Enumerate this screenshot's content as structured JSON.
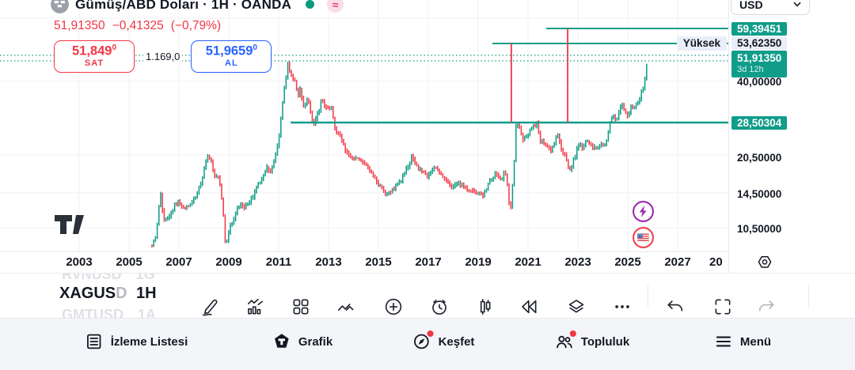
{
  "colors": {
    "accent_teal": "#0F9D8A",
    "candle_up": "#089981",
    "candle_down": "#F23645",
    "sell_red": "#F23645",
    "buy_blue": "#2962FF",
    "high_badge_bg": "#E9EEF9",
    "event_purple": "#9C27B0",
    "event_red": "#F0414D",
    "text_dark": "#131722"
  },
  "header": {
    "symbol_title": "Gümüş/ABD Doları · 1H · OANDA",
    "price": "51,91350",
    "change": "−0,41325",
    "change_pct": "(−0,79%)",
    "approx_badge": "≈",
    "sell": {
      "price_main": "51,849",
      "price_sup": "0",
      "label": "SAT"
    },
    "spread": "1.169,0",
    "buy": {
      "price_main": "51,9659",
      "price_sup": "0",
      "label": "AL"
    }
  },
  "price_scale": {
    "currency": "USD",
    "high_label": "Yüksek",
    "labels": [
      {
        "text": "59,39451",
        "type": "teal"
      },
      {
        "text": "53,62350",
        "type": "lavender"
      },
      {
        "text": "51,91350",
        "sub": "3d 12h",
        "type": "current"
      },
      {
        "text": "40,00000",
        "type": "plain"
      },
      {
        "text": "28,50304",
        "type": "teal"
      },
      {
        "text": "20,50000",
        "type": "plain"
      },
      {
        "text": "14,50000",
        "type": "plain"
      },
      {
        "text": "10,50000",
        "type": "plain"
      }
    ]
  },
  "time_axis": {
    "ticks": [
      "2003",
      "2005",
      "2007",
      "2009",
      "2011",
      "2013",
      "2015",
      "2017",
      "2019",
      "2021",
      "2023",
      "2025",
      "2027",
      "20"
    ]
  },
  "toolbar": {
    "symbol": "XAGUSD",
    "interval": "1H",
    "ghost_above": {
      "symbol": "RVNUSD",
      "interval": "1G"
    },
    "ghost_below": {
      "symbol": "GMTUSD",
      "interval": "1A"
    },
    "icons": [
      {
        "name": "draw-icon"
      },
      {
        "name": "indicators-icon"
      },
      {
        "name": "templates-icon"
      },
      {
        "name": "patterns-icon"
      },
      {
        "name": "add-icon"
      },
      {
        "name": "alert-icon"
      },
      {
        "name": "bars-icon"
      },
      {
        "name": "replay-icon"
      },
      {
        "name": "layers-icon"
      },
      {
        "name": "more-icon"
      },
      {
        "name": "undo-icon"
      },
      {
        "name": "fullscreen-icon"
      },
      {
        "name": "redo-icon"
      }
    ]
  },
  "bottom_nav": {
    "items": [
      {
        "label": "İzleme Listesi",
        "icon": "watchlist-icon",
        "badge": false
      },
      {
        "label": "Grafik",
        "icon": "chart-logo-icon",
        "badge": false
      },
      {
        "label": "Keşfet",
        "icon": "explore-icon",
        "badge": true
      },
      {
        "label": "Topluluk",
        "icon": "community-icon",
        "badge": true
      },
      {
        "label": "Menü",
        "icon": "menu-icon",
        "badge": false
      }
    ]
  },
  "chart_data": {
    "type": "candlestick",
    "title": "Gümüş/ABD Doları · 1H · OANDA",
    "symbol": "XAGUSD",
    "interval": "1H",
    "exchange": "OANDA",
    "current_price": 51.9135,
    "change": -0.41325,
    "change_percent": -0.79,
    "bid": 51.849,
    "ask": 51.9659,
    "spread_display": "1.169,0",
    "countdown": "3d 12h",
    "y_scale": "log",
    "grid": true,
    "x_ticks": [
      "2003",
      "2005",
      "2007",
      "2009",
      "2011",
      "2013",
      "2015",
      "2017",
      "2019",
      "2021",
      "2023",
      "2025",
      "2027",
      "20"
    ],
    "y_ticks": [
      10.5,
      14.5,
      20.5,
      40.0
    ],
    "x_range_years": [
      1999.8,
      2029.0
    ],
    "levels": [
      {
        "price": 59.39451,
        "label": "59,39451",
        "start_year": 2021.73
      },
      {
        "price": 53.6235,
        "label": "53,62350",
        "name": "Yüksek",
        "start_year": 2019.57
      },
      {
        "price": 28.50304,
        "label": "28,50304",
        "start_year": 2011.48
      }
    ],
    "vertical_marks_years": [
      2020.33,
      2022.59
    ],
    "series_points": [
      [
        2005.92,
        9.0
      ],
      [
        2006.08,
        9.8
      ],
      [
        2006.24,
        14.7
      ],
      [
        2006.4,
        11.2
      ],
      [
        2006.65,
        11.9
      ],
      [
        2006.97,
        13.7
      ],
      [
        2007.19,
        12.5
      ],
      [
        2007.54,
        13.4
      ],
      [
        2007.86,
        15.7
      ],
      [
        2008.17,
        20.7
      ],
      [
        2008.4,
        17.2
      ],
      [
        2008.62,
        16.4
      ],
      [
        2008.81,
        11.4
      ],
      [
        2008.87,
        8.9
      ],
      [
        2009.13,
        11.2
      ],
      [
        2009.44,
        13.2
      ],
      [
        2009.6,
        12.5
      ],
      [
        2009.92,
        13.7
      ],
      [
        2010.24,
        16.0
      ],
      [
        2010.52,
        18.3
      ],
      [
        2010.68,
        17.5
      ],
      [
        2011.0,
        23.3
      ],
      [
        2011.35,
        46.9
      ],
      [
        2011.51,
        41.8
      ],
      [
        2011.67,
        39.4
      ],
      [
        2011.79,
        35.3
      ],
      [
        2011.89,
        37.4
      ],
      [
        2011.98,
        31.1
      ],
      [
        2012.11,
        34.6
      ],
      [
        2012.21,
        32.9
      ],
      [
        2012.37,
        27.1
      ],
      [
        2012.59,
        30.0
      ],
      [
        2012.68,
        33.6
      ],
      [
        2012.9,
        31.8
      ],
      [
        2013.1,
        31.4
      ],
      [
        2013.25,
        25.9
      ],
      [
        2013.48,
        23.8
      ],
      [
        2013.7,
        21.0
      ],
      [
        2014.02,
        19.9
      ],
      [
        2014.33,
        19.5
      ],
      [
        2014.65,
        17.9
      ],
      [
        2014.97,
        15.8
      ],
      [
        2015.32,
        14.3
      ],
      [
        2015.6,
        15.0
      ],
      [
        2015.92,
        16.3
      ],
      [
        2016.33,
        19.9
      ],
      [
        2016.65,
        17.9
      ],
      [
        2016.97,
        16.9
      ],
      [
        2017.29,
        18.3
      ],
      [
        2017.6,
        16.5
      ],
      [
        2017.92,
        15.4
      ],
      [
        2018.24,
        15.8
      ],
      [
        2018.56,
        15.0
      ],
      [
        2018.87,
        14.6
      ],
      [
        2019.19,
        14.2
      ],
      [
        2019.51,
        16.4
      ],
      [
        2019.73,
        17.7
      ],
      [
        2019.92,
        16.0
      ],
      [
        2020.05,
        18.0
      ],
      [
        2020.21,
        14.6
      ],
      [
        2020.27,
        11.4
      ],
      [
        2020.4,
        16.0
      ],
      [
        2020.52,
        27.5
      ],
      [
        2020.62,
        26.5
      ],
      [
        2020.78,
        23.3
      ],
      [
        2021.0,
        24.7
      ],
      [
        2021.19,
        26.2
      ],
      [
        2021.35,
        27.1
      ],
      [
        2021.51,
        23.4
      ],
      [
        2021.73,
        22.2
      ],
      [
        2021.89,
        21.4
      ],
      [
        2022.05,
        23.0
      ],
      [
        2022.21,
        24.7
      ],
      [
        2022.37,
        21.4
      ],
      [
        2022.56,
        19.2
      ],
      [
        2022.68,
        17.7
      ],
      [
        2022.87,
        19.9
      ],
      [
        2023.03,
        23.0
      ],
      [
        2023.16,
        21.7
      ],
      [
        2023.35,
        23.3
      ],
      [
        2023.57,
        22.3
      ],
      [
        2023.73,
        21.4
      ],
      [
        2023.89,
        22.6
      ],
      [
        2024.05,
        22.0
      ],
      [
        2024.17,
        24.4
      ],
      [
        2024.3,
        28.0
      ],
      [
        2024.4,
        30.0
      ],
      [
        2024.52,
        28.1
      ],
      [
        2024.68,
        31.5
      ],
      [
        2024.78,
        32.4
      ],
      [
        2024.87,
        30.0
      ],
      [
        2025.0,
        29.4
      ],
      [
        2025.1,
        31.8
      ],
      [
        2025.22,
        30.7
      ],
      [
        2025.35,
        32.7
      ],
      [
        2025.48,
        34.4
      ],
      [
        2025.57,
        37.0
      ],
      [
        2025.67,
        39.2
      ],
      [
        2025.73,
        44.6
      ],
      [
        2025.79,
        51.9
      ]
    ]
  }
}
